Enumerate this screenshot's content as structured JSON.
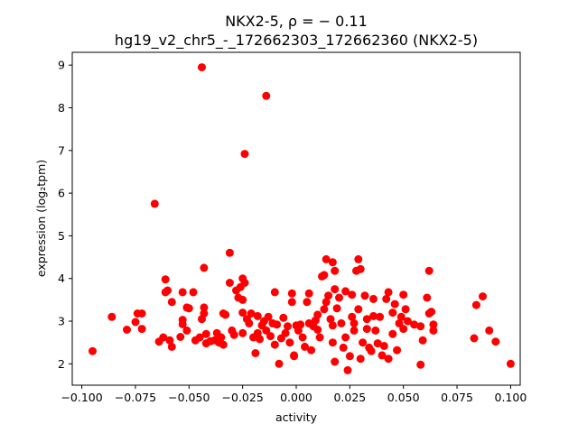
{
  "chart_data": {
    "type": "scatter",
    "title": "NKX2-5, ρ = − 0.11",
    "subtitle": "hg19_v2_chr5_-_172662303_172662360 (NKX2-5)",
    "xlabel": "activity",
    "ylabel": "expression (log₂tpm)",
    "xlim": [
      -0.1,
      0.1
    ],
    "ylim": [
      1.5,
      9.3
    ],
    "xticks": [
      -0.1,
      -0.075,
      -0.05,
      -0.025,
      0.0,
      0.025,
      0.05,
      0.075,
      0.1
    ],
    "xtick_labels": [
      "−0.100",
      "−0.075",
      "−0.050",
      "−0.025",
      "0.000",
      "0.025",
      "0.050",
      "0.075",
      "0.100"
    ],
    "yticks": [
      2,
      3,
      4,
      5,
      6,
      7,
      8,
      9
    ],
    "ytick_labels": [
      "2",
      "3",
      "4",
      "5",
      "6",
      "7",
      "8",
      "9"
    ],
    "grid": false,
    "marker_color": "#ff0000",
    "points": [
      [
        -0.095,
        2.3
      ],
      [
        -0.086,
        3.1
      ],
      [
        -0.079,
        2.8
      ],
      [
        -0.075,
        2.98
      ],
      [
        -0.074,
        3.18
      ],
      [
        -0.072,
        3.18
      ],
      [
        -0.072,
        2.82
      ],
      [
        -0.066,
        5.75
      ],
      [
        -0.064,
        2.52
      ],
      [
        -0.062,
        2.62
      ],
      [
        -0.061,
        3.68
      ],
      [
        -0.061,
        3.98
      ],
      [
        -0.06,
        3.72
      ],
      [
        -0.059,
        2.55
      ],
      [
        -0.058,
        2.4
      ],
      [
        -0.058,
        3.45
      ],
      [
        -0.054,
        2.63
      ],
      [
        -0.053,
        3.68
      ],
      [
        -0.053,
        2.93
      ],
      [
        -0.053,
        3.03
      ],
      [
        -0.051,
        2.78
      ],
      [
        -0.051,
        3.32
      ],
      [
        -0.05,
        3.3
      ],
      [
        -0.048,
        3.68
      ],
      [
        -0.047,
        2.55
      ],
      [
        -0.045,
        2.62
      ],
      [
        -0.044,
        8.95
      ],
      [
        -0.044,
        3.05
      ],
      [
        -0.043,
        4.25
      ],
      [
        -0.043,
        3.32
      ],
      [
        -0.043,
        3.18
      ],
      [
        -0.042,
        2.7
      ],
      [
        -0.042,
        2.48
      ],
      [
        -0.04,
        2.53
      ],
      [
        -0.038,
        2.55
      ],
      [
        -0.037,
        2.72
      ],
      [
        -0.036,
        2.5
      ],
      [
        -0.035,
        2.62
      ],
      [
        -0.034,
        3.18
      ],
      [
        -0.034,
        2.45
      ],
      [
        -0.033,
        3.15
      ],
      [
        -0.031,
        4.6
      ],
      [
        -0.031,
        3.9
      ],
      [
        -0.03,
        2.78
      ],
      [
        -0.029,
        2.68
      ],
      [
        -0.028,
        3.72
      ],
      [
        -0.027,
        3.55
      ],
      [
        -0.026,
        3.8
      ],
      [
        -0.025,
        2.72
      ],
      [
        -0.025,
        4.0
      ],
      [
        -0.025,
        3.2
      ],
      [
        -0.025,
        3.5
      ],
      [
        -0.024,
        6.92
      ],
      [
        -0.024,
        3.9
      ],
      [
        -0.023,
        3.05
      ],
      [
        -0.022,
        2.95
      ],
      [
        -0.021,
        3.18
      ],
      [
        -0.02,
        2.62
      ],
      [
        -0.019,
        2.25
      ],
      [
        -0.018,
        2.72
      ],
      [
        -0.018,
        3.12
      ],
      [
        -0.017,
        2.58
      ],
      [
        -0.016,
        2.9
      ],
      [
        -0.015,
        3.0
      ],
      [
        -0.014,
        2.78
      ],
      [
        -0.014,
        8.28
      ],
      [
        -0.013,
        3.1
      ],
      [
        -0.012,
        2.65
      ],
      [
        -0.011,
        2.95
      ],
      [
        -0.01,
        3.68
      ],
      [
        -0.01,
        2.45
      ],
      [
        -0.009,
        2.92
      ],
      [
        -0.008,
        2.0
      ],
      [
        -0.007,
        2.6
      ],
      [
        -0.006,
        3.08
      ],
      [
        -0.005,
        2.72
      ],
      [
        -0.004,
        2.88
      ],
      [
        -0.003,
        2.5
      ],
      [
        -0.002,
        3.45
      ],
      [
        -0.002,
        3.65
      ],
      [
        -0.001,
        2.2
      ],
      [
        -0.001,
        2.18
      ],
      [
        0.0,
        2.9
      ],
      [
        0.001,
        2.78
      ],
      [
        0.002,
        2.92
      ],
      [
        0.003,
        2.62
      ],
      [
        0.004,
        2.4
      ],
      [
        0.005,
        3.45
      ],
      [
        0.006,
        2.95
      ],
      [
        0.006,
        3.65
      ],
      [
        0.007,
        2.32
      ],
      [
        0.008,
        2.88
      ],
      [
        0.009,
        3.02
      ],
      [
        0.01,
        3.15
      ],
      [
        0.01,
        2.8
      ],
      [
        0.011,
        2.62
      ],
      [
        0.012,
        4.05
      ],
      [
        0.013,
        3.28
      ],
      [
        0.013,
        4.08
      ],
      [
        0.014,
        4.45
      ],
      [
        0.014,
        3.45
      ],
      [
        0.015,
        3.6
      ],
      [
        0.016,
        3.05
      ],
      [
        0.017,
        4.38
      ],
      [
        0.017,
        2.9
      ],
      [
        0.017,
        2.5
      ],
      [
        0.018,
        2.05
      ],
      [
        0.018,
        4.18
      ],
      [
        0.018,
        3.75
      ],
      [
        0.019,
        3.3
      ],
      [
        0.02,
        3.55
      ],
      [
        0.021,
        2.95
      ],
      [
        0.022,
        2.38
      ],
      [
        0.023,
        3.7
      ],
      [
        0.023,
        2.62
      ],
      [
        0.024,
        1.85
      ],
      [
        0.025,
        2.18
      ],
      [
        0.026,
        3.1
      ],
      [
        0.026,
        3.62
      ],
      [
        0.027,
        2.95
      ],
      [
        0.027,
        2.78
      ],
      [
        0.028,
        4.18
      ],
      [
        0.029,
        4.45
      ],
      [
        0.029,
        3.28
      ],
      [
        0.03,
        4.22
      ],
      [
        0.03,
        2.12
      ],
      [
        0.031,
        2.5
      ],
      [
        0.032,
        3.6
      ],
      [
        0.033,
        3.05
      ],
      [
        0.033,
        2.82
      ],
      [
        0.034,
        2.38
      ],
      [
        0.035,
        2.3
      ],
      [
        0.036,
        3.52
      ],
      [
        0.036,
        3.12
      ],
      [
        0.037,
        2.78
      ],
      [
        0.038,
        2.48
      ],
      [
        0.039,
        3.1
      ],
      [
        0.04,
        2.2
      ],
      [
        0.041,
        2.42
      ],
      [
        0.042,
        3.52
      ],
      [
        0.043,
        3.68
      ],
      [
        0.043,
        2.12
      ],
      [
        0.045,
        2.7
      ],
      [
        0.045,
        3.2
      ],
      [
        0.046,
        3.4
      ],
      [
        0.047,
        2.32
      ],
      [
        0.048,
        2.95
      ],
      [
        0.049,
        3.1
      ],
      [
        0.05,
        3.62
      ],
      [
        0.05,
        2.82
      ],
      [
        0.051,
        3.28
      ],
      [
        0.052,
        3.0
      ],
      [
        0.055,
        2.92
      ],
      [
        0.058,
        2.88
      ],
      [
        0.058,
        1.98
      ],
      [
        0.059,
        2.55
      ],
      [
        0.061,
        3.55
      ],
      [
        0.062,
        3.18
      ],
      [
        0.062,
        4.18
      ],
      [
        0.063,
        3.22
      ],
      [
        0.064,
        2.78
      ],
      [
        0.064,
        2.92
      ],
      [
        0.083,
        2.6
      ],
      [
        0.084,
        3.38
      ],
      [
        0.087,
        3.58
      ],
      [
        0.09,
        2.78
      ],
      [
        0.093,
        2.52
      ],
      [
        0.1,
        2.0
      ]
    ]
  }
}
